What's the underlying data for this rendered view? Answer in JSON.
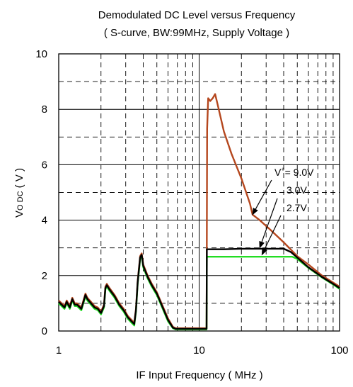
{
  "chart_data": {
    "type": "line",
    "title": "Demodulated DC Level  versus Frequency",
    "subtitle": "( S-curve, BW:99MHz, Supply Voltage )",
    "xlabel": "IF Input Frequency ( MHz )",
    "ylabel": "VO DC ( V )",
    "ylabel_main": "V",
    "ylabel_sub": "O DC",
    "ylabel_rest": " ( V )",
    "x_scale": "log",
    "xlim": [
      1,
      100
    ],
    "ylim": [
      0,
      10
    ],
    "x_ticks": [
      1,
      10,
      100
    ],
    "x_tick_labels": [
      "1",
      "10",
      "100"
    ],
    "y_ticks": [
      0,
      2,
      4,
      6,
      8,
      10
    ],
    "y_tick_labels": [
      "0",
      "2",
      "4",
      "6",
      "8",
      "10"
    ],
    "grid": true,
    "series": [
      {
        "name": "V+= 9.0V",
        "color": "#b5471e",
        "points": [
          [
            1.0,
            1.1
          ],
          [
            1.1,
            0.9
          ],
          [
            1.14,
            1.1
          ],
          [
            1.2,
            0.9
          ],
          [
            1.25,
            1.2
          ],
          [
            1.3,
            1.0
          ],
          [
            1.35,
            1.0
          ],
          [
            1.45,
            0.85
          ],
          [
            1.55,
            1.35
          ],
          [
            1.6,
            1.2
          ],
          [
            1.7,
            1.05
          ],
          [
            1.8,
            0.9
          ],
          [
            1.9,
            0.85
          ],
          [
            2.0,
            0.7
          ],
          [
            2.1,
            0.95
          ],
          [
            2.15,
            1.6
          ],
          [
            2.2,
            1.7
          ],
          [
            2.3,
            1.55
          ],
          [
            2.5,
            1.3
          ],
          [
            2.7,
            1.0
          ],
          [
            2.9,
            0.8
          ],
          [
            3.1,
            0.55
          ],
          [
            3.3,
            0.4
          ],
          [
            3.45,
            0.3
          ],
          [
            3.55,
            0.8
          ],
          [
            3.65,
            1.8
          ],
          [
            3.8,
            2.7
          ],
          [
            3.9,
            2.8
          ],
          [
            4.0,
            2.4
          ],
          [
            4.3,
            2.0
          ],
          [
            4.6,
            1.7
          ],
          [
            5.0,
            1.4
          ],
          [
            5.5,
            0.9
          ],
          [
            6.0,
            0.45
          ],
          [
            6.5,
            0.15
          ],
          [
            6.8,
            0.1
          ],
          [
            7.5,
            0.1
          ],
          [
            9.0,
            0.1
          ],
          [
            10.5,
            0.1
          ],
          [
            11.3,
            0.1
          ],
          [
            11.4,
            7.3
          ],
          [
            11.6,
            8.4
          ],
          [
            12.0,
            8.3
          ],
          [
            12.5,
            8.4
          ],
          [
            13.0,
            8.55
          ],
          [
            13.5,
            8.2
          ],
          [
            15.0,
            7.2
          ],
          [
            17.0,
            6.4
          ],
          [
            20.0,
            5.5
          ],
          [
            23.0,
            4.6
          ],
          [
            24.0,
            4.2
          ],
          [
            27.0,
            4.0
          ],
          [
            33.0,
            3.6
          ],
          [
            40.0,
            3.2
          ],
          [
            50.0,
            2.7
          ],
          [
            60.0,
            2.4
          ],
          [
            75.0,
            2.0
          ],
          [
            90.0,
            1.75
          ],
          [
            100.0,
            1.6
          ]
        ]
      },
      {
        "name": "3.0V",
        "color": "#000000",
        "points": [
          [
            1.0,
            1.05
          ],
          [
            1.1,
            0.85
          ],
          [
            1.14,
            1.05
          ],
          [
            1.2,
            0.85
          ],
          [
            1.25,
            1.15
          ],
          [
            1.3,
            0.95
          ],
          [
            1.35,
            0.95
          ],
          [
            1.45,
            0.8
          ],
          [
            1.55,
            1.3
          ],
          [
            1.6,
            1.15
          ],
          [
            1.7,
            1.0
          ],
          [
            1.8,
            0.85
          ],
          [
            1.9,
            0.8
          ],
          [
            2.0,
            0.65
          ],
          [
            2.1,
            0.9
          ],
          [
            2.15,
            1.55
          ],
          [
            2.2,
            1.65
          ],
          [
            2.3,
            1.5
          ],
          [
            2.5,
            1.25
          ],
          [
            2.7,
            0.95
          ],
          [
            2.9,
            0.75
          ],
          [
            3.1,
            0.5
          ],
          [
            3.3,
            0.35
          ],
          [
            3.45,
            0.25
          ],
          [
            3.55,
            0.75
          ],
          [
            3.65,
            1.75
          ],
          [
            3.8,
            2.65
          ],
          [
            3.9,
            2.75
          ],
          [
            4.0,
            2.35
          ],
          [
            4.3,
            1.95
          ],
          [
            4.6,
            1.65
          ],
          [
            5.0,
            1.35
          ],
          [
            5.5,
            0.85
          ],
          [
            6.0,
            0.4
          ],
          [
            6.5,
            0.12
          ],
          [
            6.8,
            0.08
          ],
          [
            7.5,
            0.08
          ],
          [
            9.0,
            0.08
          ],
          [
            10.5,
            0.08
          ],
          [
            11.3,
            0.08
          ],
          [
            11.35,
            2.95
          ],
          [
            15.0,
            2.95
          ],
          [
            20.0,
            2.97
          ],
          [
            30.0,
            2.97
          ],
          [
            40.0,
            2.97
          ],
          [
            45.0,
            2.85
          ],
          [
            50.0,
            2.65
          ],
          [
            60.0,
            2.3
          ],
          [
            75.0,
            1.95
          ],
          [
            90.0,
            1.7
          ],
          [
            100.0,
            1.55
          ]
        ]
      },
      {
        "name": "2.7V",
        "color": "#22dd22",
        "points": [
          [
            1.0,
            1.0
          ],
          [
            1.1,
            0.8
          ],
          [
            1.14,
            1.0
          ],
          [
            1.2,
            0.8
          ],
          [
            1.25,
            1.1
          ],
          [
            1.3,
            0.9
          ],
          [
            1.35,
            0.9
          ],
          [
            1.45,
            0.75
          ],
          [
            1.55,
            1.25
          ],
          [
            1.6,
            1.1
          ],
          [
            1.7,
            0.95
          ],
          [
            1.8,
            0.8
          ],
          [
            1.9,
            0.75
          ],
          [
            2.0,
            0.6
          ],
          [
            2.1,
            0.85
          ],
          [
            2.15,
            1.5
          ],
          [
            2.2,
            1.6
          ],
          [
            2.3,
            1.45
          ],
          [
            2.5,
            1.2
          ],
          [
            2.7,
            0.9
          ],
          [
            2.9,
            0.7
          ],
          [
            3.1,
            0.45
          ],
          [
            3.3,
            0.3
          ],
          [
            3.45,
            0.2
          ],
          [
            3.55,
            0.7
          ],
          [
            3.65,
            1.7
          ],
          [
            3.8,
            2.6
          ],
          [
            3.9,
            2.7
          ],
          [
            4.0,
            2.3
          ],
          [
            4.3,
            1.9
          ],
          [
            4.6,
            1.6
          ],
          [
            5.0,
            1.3
          ],
          [
            5.5,
            0.8
          ],
          [
            6.0,
            0.35
          ],
          [
            6.5,
            0.1
          ],
          [
            6.8,
            0.06
          ],
          [
            7.5,
            0.06
          ],
          [
            9.0,
            0.06
          ],
          [
            10.5,
            0.06
          ],
          [
            11.3,
            0.06
          ],
          [
            11.35,
            2.68
          ],
          [
            20.0,
            2.68
          ],
          [
            40.0,
            2.68
          ],
          [
            46.0,
            2.68
          ],
          [
            50.0,
            2.6
          ],
          [
            60.0,
            2.28
          ],
          [
            75.0,
            1.93
          ],
          [
            90.0,
            1.68
          ],
          [
            100.0,
            1.52
          ]
        ]
      }
    ],
    "annotations": [
      {
        "label": "V",
        "sup": "+",
        "rest": "= 9.0V",
        "at": [
          24,
          4.2
        ]
      },
      {
        "label": "3.0V",
        "sup": "",
        "rest": "",
        "at": [
          27,
          3.0
        ]
      },
      {
        "label": "2.7V",
        "sup": "",
        "rest": "",
        "at": [
          28,
          2.75
        ]
      }
    ]
  }
}
